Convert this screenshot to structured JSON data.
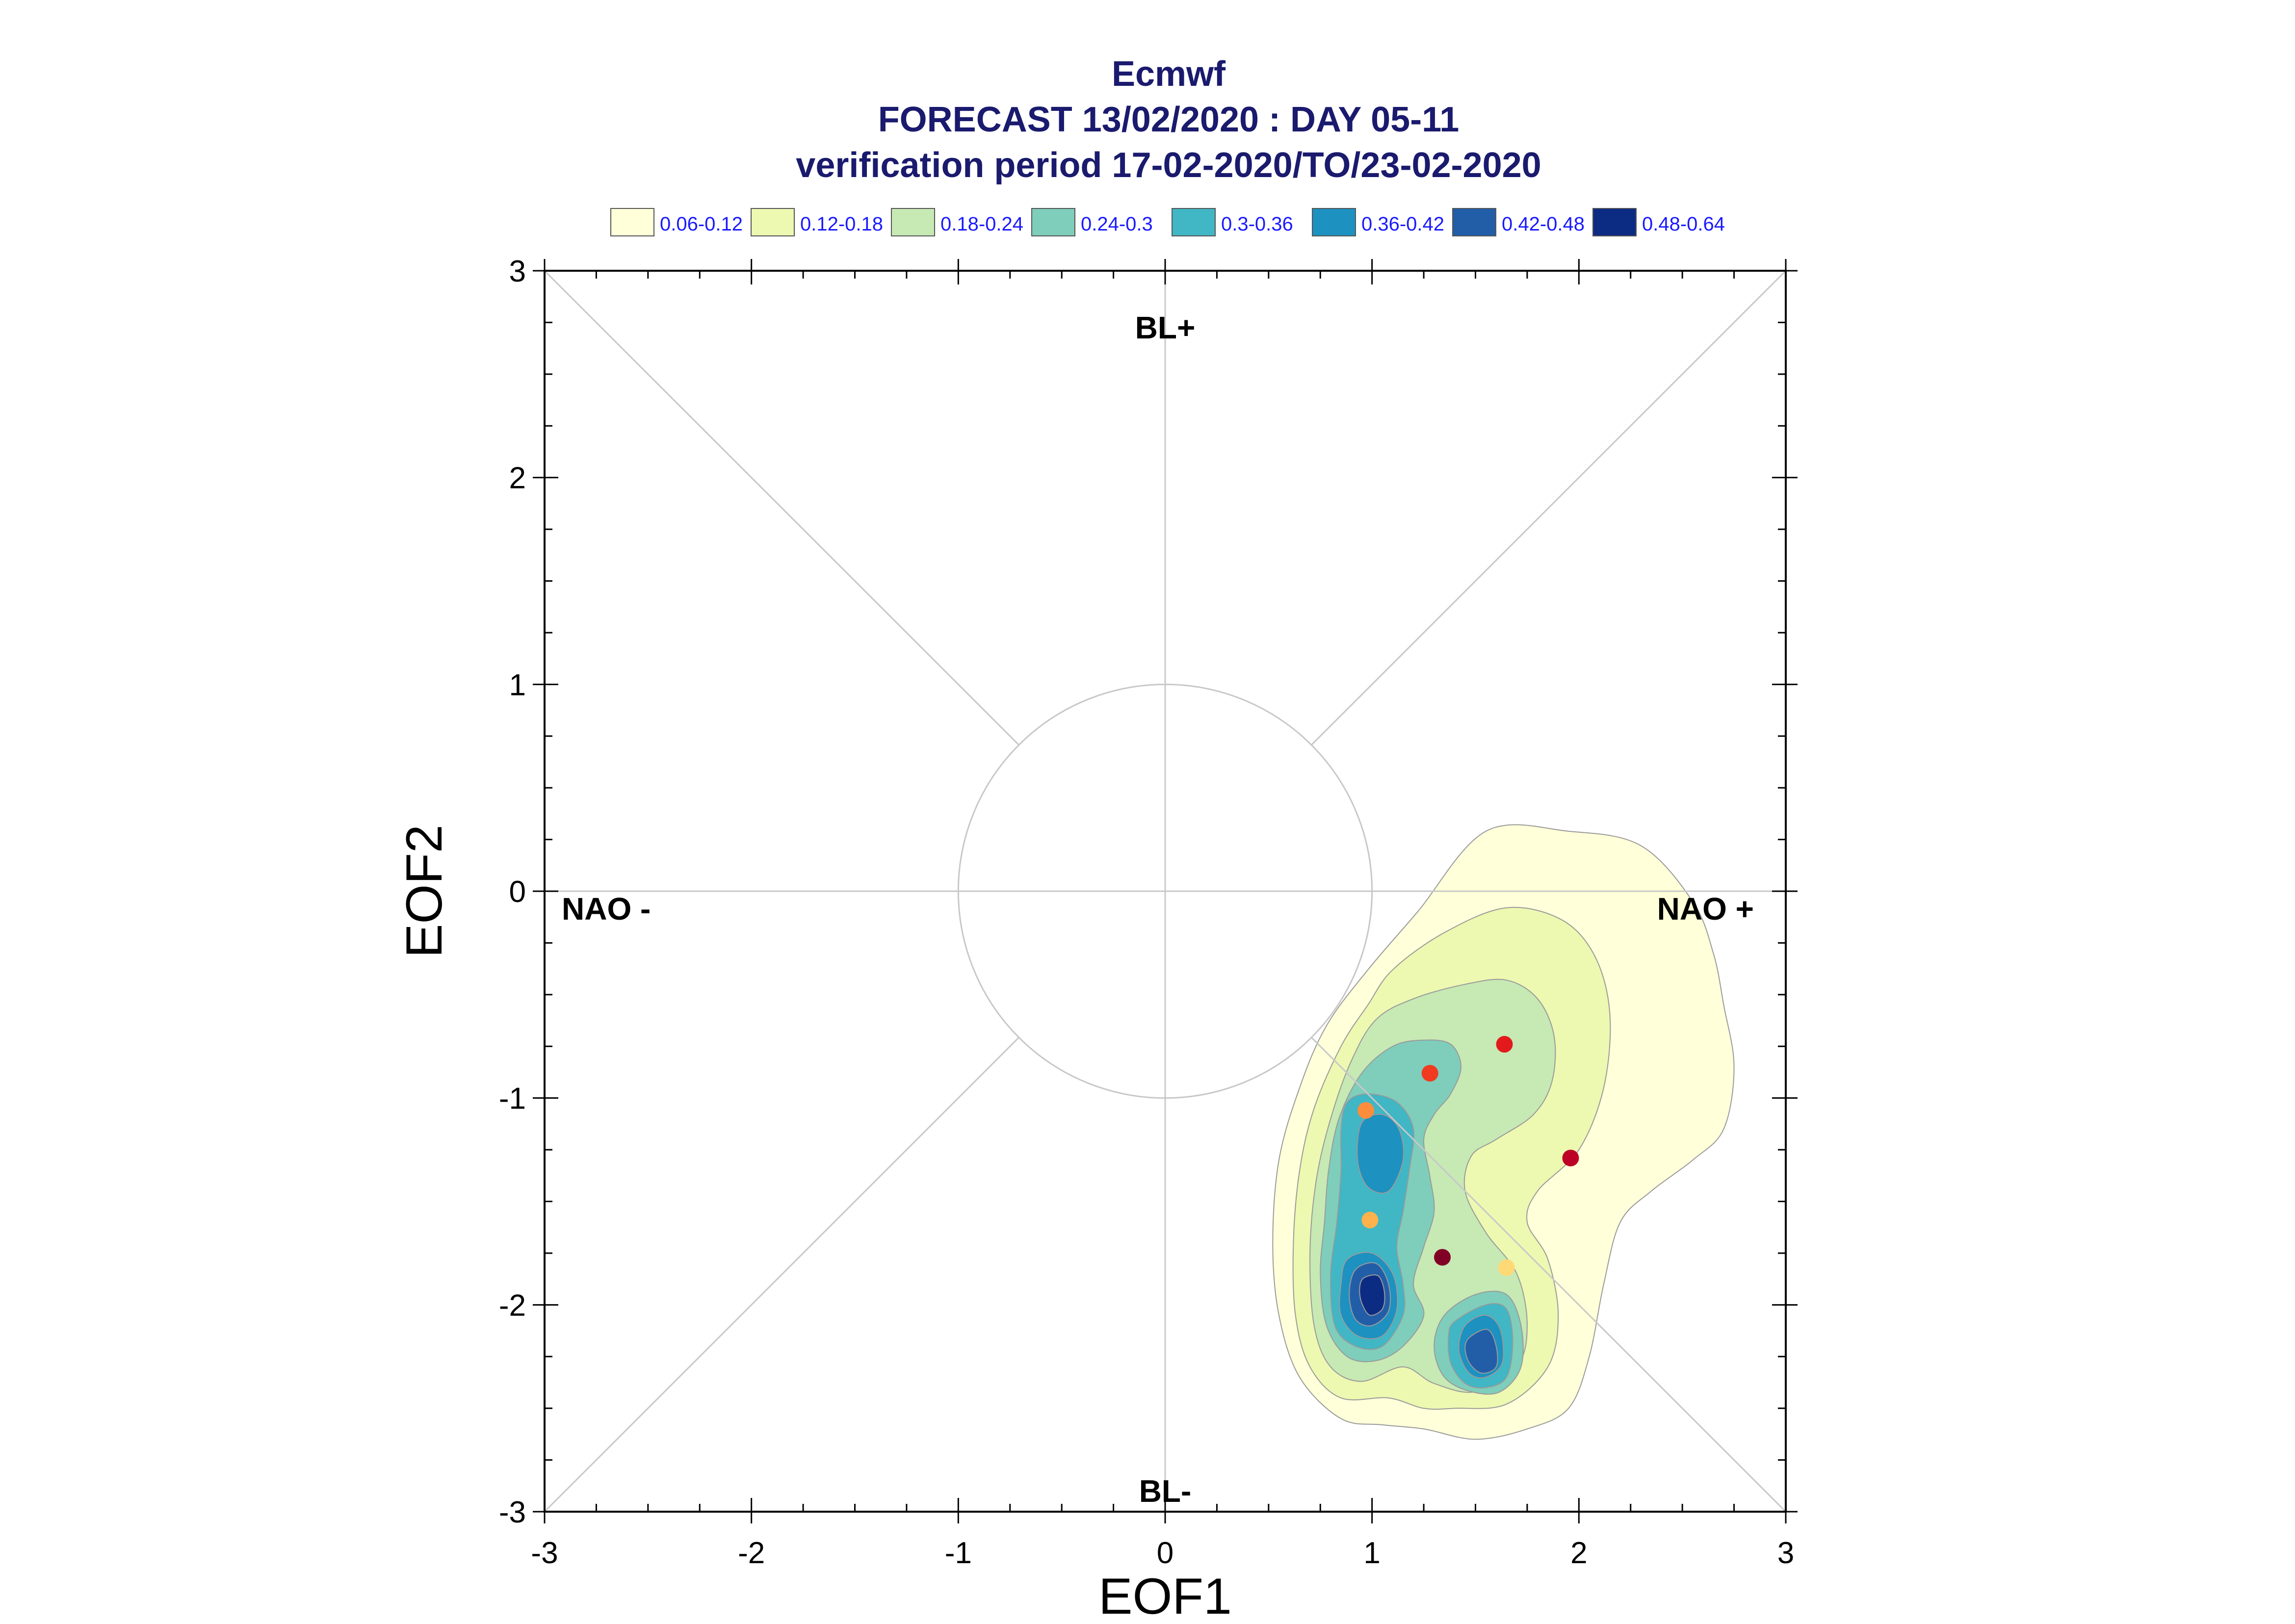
{
  "titles": {
    "line1": "Ecmwf",
    "line2": "FORECAST 13/02/2020 : DAY 05-11",
    "line3": "verification period 17-02-2020/TO/23-02-2020"
  },
  "legend": [
    {
      "label": "0.06-0.12",
      "color": "#ffffd9"
    },
    {
      "label": "0.12-0.18",
      "color": "#edf8b1"
    },
    {
      "label": "0.18-0.24",
      "color": "#c7e9b4"
    },
    {
      "label": "0.24-0.3",
      "color": "#7fcdbb"
    },
    {
      "label": "0.3-0.36",
      "color": "#41b6c4"
    },
    {
      "label": "0.36-0.42",
      "color": "#1d91c0"
    },
    {
      "label": "0.42-0.48",
      "color": "#225ea8"
    },
    {
      "label": "0.48-0.64",
      "color": "#0c2c84"
    }
  ],
  "regimes": {
    "top": "BL+",
    "bottom": "BL-",
    "left": "NAO -",
    "right": "NAO +"
  },
  "chart_data": {
    "type": "scatter",
    "xlabel": "EOF1",
    "ylabel": "EOF2",
    "xlim": [
      -3,
      3
    ],
    "ylim": [
      -3,
      3
    ],
    "xticks": [
      "-3",
      "-2",
      "-1",
      "0",
      "1",
      "2",
      "3"
    ],
    "yticks": [
      "-3",
      "-2",
      "-1",
      "0",
      "1",
      "2",
      "3"
    ],
    "unit_circle_radius": 1,
    "points": [
      {
        "x": 1.64,
        "y": -0.74,
        "color": "#e31a1c"
      },
      {
        "x": 1.28,
        "y": -0.88,
        "color": "#f03b20"
      },
      {
        "x": 0.97,
        "y": -1.06,
        "color": "#fd8d3c"
      },
      {
        "x": 1.96,
        "y": -1.29,
        "color": "#bd0026"
      },
      {
        "x": 0.99,
        "y": -1.59,
        "color": "#feb24c"
      },
      {
        "x": 1.34,
        "y": -1.77,
        "color": "#800026"
      },
      {
        "x": 1.65,
        "y": -1.82,
        "color": "#fed976"
      }
    ],
    "density_levels": [
      0.06,
      0.12,
      0.18,
      0.24,
      0.3,
      0.36,
      0.42,
      0.48,
      0.64
    ],
    "density_contours": [
      {
        "level": "0.06-0.12",
        "color": "#ffffd9",
        "polys": [
          [
            [
              1.55,
              0.29
            ],
            [
              1.95,
              0.29
            ],
            [
              2.3,
              0.22
            ],
            [
              2.55,
              -0.05
            ],
            [
              2.65,
              -0.3
            ],
            [
              2.7,
              -0.55
            ],
            [
              2.75,
              -0.85
            ],
            [
              2.7,
              -1.15
            ],
            [
              2.55,
              -1.3
            ],
            [
              2.35,
              -1.45
            ],
            [
              2.2,
              -1.6
            ],
            [
              2.12,
              -1.9
            ],
            [
              2.05,
              -2.25
            ],
            [
              1.95,
              -2.5
            ],
            [
              1.75,
              -2.6
            ],
            [
              1.5,
              -2.65
            ],
            [
              1.25,
              -2.6
            ],
            [
              1.05,
              -2.58
            ],
            [
              0.85,
              -2.55
            ],
            [
              0.65,
              -2.35
            ],
            [
              0.55,
              -2.05
            ],
            [
              0.52,
              -1.7
            ],
            [
              0.55,
              -1.3
            ],
            [
              0.65,
              -0.95
            ],
            [
              0.78,
              -0.65
            ],
            [
              0.98,
              -0.38
            ],
            [
              1.22,
              -0.1
            ]
          ]
        ]
      },
      {
        "level": "0.12-0.18",
        "color": "#edf8b1",
        "polys": [
          [
            [
              1.1,
              -0.38
            ],
            [
              1.35,
              -0.2
            ],
            [
              1.65,
              -0.08
            ],
            [
              1.92,
              -0.14
            ],
            [
              2.08,
              -0.32
            ],
            [
              2.15,
              -0.6
            ],
            [
              2.12,
              -0.95
            ],
            [
              2.0,
              -1.25
            ],
            [
              1.8,
              -1.45
            ],
            [
              1.75,
              -1.6
            ],
            [
              1.85,
              -1.78
            ],
            [
              1.9,
              -2.05
            ],
            [
              1.85,
              -2.3
            ],
            [
              1.65,
              -2.48
            ],
            [
              1.4,
              -2.5
            ],
            [
              1.25,
              -2.5
            ],
            [
              1.08,
              -2.45
            ],
            [
              0.85,
              -2.45
            ],
            [
              0.7,
              -2.3
            ],
            [
              0.63,
              -2.05
            ],
            [
              0.62,
              -1.7
            ],
            [
              0.65,
              -1.35
            ],
            [
              0.72,
              -1.05
            ],
            [
              0.85,
              -0.75
            ],
            [
              0.98,
              -0.55
            ]
          ]
        ]
      },
      {
        "level": "0.18-0.24",
        "color": "#c7e9b4",
        "polys": [
          [
            [
              1.02,
              -0.62
            ],
            [
              1.2,
              -0.52
            ],
            [
              1.45,
              -0.45
            ],
            [
              1.65,
              -0.43
            ],
            [
              1.8,
              -0.52
            ],
            [
              1.88,
              -0.7
            ],
            [
              1.87,
              -0.92
            ],
            [
              1.78,
              -1.08
            ],
            [
              1.6,
              -1.2
            ],
            [
              1.48,
              -1.28
            ],
            [
              1.45,
              -1.45
            ],
            [
              1.55,
              -1.65
            ],
            [
              1.7,
              -1.85
            ],
            [
              1.75,
              -2.1
            ],
            [
              1.7,
              -2.3
            ],
            [
              1.5,
              -2.42
            ],
            [
              1.3,
              -2.38
            ],
            [
              1.15,
              -2.3
            ],
            [
              0.95,
              -2.37
            ],
            [
              0.8,
              -2.3
            ],
            [
              0.72,
              -2.1
            ],
            [
              0.7,
              -1.75
            ],
            [
              0.73,
              -1.4
            ],
            [
              0.8,
              -1.1
            ],
            [
              0.9,
              -0.82
            ]
          ]
        ]
      },
      {
        "level": "0.24-0.3",
        "color": "#7fcdbb",
        "polys": [
          [
            [
              0.84,
              -1.1
            ],
            [
              0.95,
              -0.88
            ],
            [
              1.1,
              -0.75
            ],
            [
              1.25,
              -0.72
            ],
            [
              1.38,
              -0.74
            ],
            [
              1.43,
              -0.85
            ],
            [
              1.38,
              -0.98
            ],
            [
              1.3,
              -1.08
            ],
            [
              1.25,
              -1.2
            ],
            [
              1.28,
              -1.38
            ],
            [
              1.3,
              -1.55
            ],
            [
              1.25,
              -1.72
            ],
            [
              1.2,
              -1.9
            ],
            [
              1.25,
              -2.05
            ],
            [
              1.15,
              -2.2
            ],
            [
              1.02,
              -2.27
            ],
            [
              0.88,
              -2.25
            ],
            [
              0.78,
              -2.1
            ],
            [
              0.75,
              -1.85
            ],
            [
              0.77,
              -1.6
            ],
            [
              0.79,
              -1.35
            ]
          ],
          [
            [
              1.35,
              -2.05
            ],
            [
              1.5,
              -1.95
            ],
            [
              1.65,
              -1.95
            ],
            [
              1.72,
              -2.1
            ],
            [
              1.72,
              -2.3
            ],
            [
              1.62,
              -2.42
            ],
            [
              1.48,
              -2.42
            ],
            [
              1.35,
              -2.35
            ],
            [
              1.3,
              -2.2
            ]
          ]
        ]
      },
      {
        "level": "0.3-0.36",
        "color": "#41b6c4",
        "polys": [
          [
            [
              0.88,
              -1.02
            ],
            [
              0.98,
              -0.98
            ],
            [
              1.12,
              -1.02
            ],
            [
              1.2,
              -1.15
            ],
            [
              1.18,
              -1.35
            ],
            [
              1.15,
              -1.55
            ],
            [
              1.12,
              -1.72
            ],
            [
              1.15,
              -1.9
            ],
            [
              1.15,
              -2.05
            ],
            [
              1.05,
              -2.2
            ],
            [
              0.92,
              -2.2
            ],
            [
              0.82,
              -2.1
            ],
            [
              0.8,
              -1.85
            ],
            [
              0.83,
              -1.6
            ],
            [
              0.85,
              -1.35
            ],
            [
              0.85,
              -1.15
            ]
          ],
          [
            [
              1.4,
              -2.08
            ],
            [
              1.55,
              -2.0
            ],
            [
              1.65,
              -2.02
            ],
            [
              1.68,
              -2.18
            ],
            [
              1.65,
              -2.35
            ],
            [
              1.55,
              -2.4
            ],
            [
              1.45,
              -2.38
            ],
            [
              1.38,
              -2.28
            ],
            [
              1.37,
              -2.15
            ]
          ]
        ]
      },
      {
        "level": "0.36-0.42",
        "color": "#1d91c0",
        "polys": [
          [
            [
              0.95,
              -1.12
            ],
            [
              1.05,
              -1.08
            ],
            [
              1.13,
              -1.15
            ],
            [
              1.15,
              -1.3
            ],
            [
              1.08,
              -1.45
            ],
            [
              0.98,
              -1.43
            ],
            [
              0.93,
              -1.3
            ]
          ],
          [
            [
              0.88,
              -1.78
            ],
            [
              1.0,
              -1.75
            ],
            [
              1.1,
              -1.85
            ],
            [
              1.12,
              -2.02
            ],
            [
              1.05,
              -2.15
            ],
            [
              0.93,
              -2.15
            ],
            [
              0.85,
              -2.05
            ],
            [
              0.85,
              -1.9
            ]
          ],
          [
            [
              1.45,
              -2.1
            ],
            [
              1.55,
              -2.05
            ],
            [
              1.62,
              -2.12
            ],
            [
              1.63,
              -2.28
            ],
            [
              1.55,
              -2.35
            ],
            [
              1.47,
              -2.33
            ],
            [
              1.42,
              -2.22
            ]
          ]
        ]
      },
      {
        "level": "0.42-0.48",
        "color": "#225ea8",
        "polys": [
          [
            [
              0.92,
              -1.83
            ],
            [
              1.02,
              -1.8
            ],
            [
              1.08,
              -1.9
            ],
            [
              1.08,
              -2.03
            ],
            [
              1.0,
              -2.1
            ],
            [
              0.92,
              -2.07
            ],
            [
              0.89,
              -1.95
            ]
          ],
          [
            [
              1.48,
              -2.15
            ],
            [
              1.56,
              -2.12
            ],
            [
              1.6,
              -2.2
            ],
            [
              1.6,
              -2.3
            ],
            [
              1.53,
              -2.33
            ],
            [
              1.47,
              -2.28
            ],
            [
              1.45,
              -2.2
            ]
          ]
        ]
      },
      {
        "level": "0.48-0.64",
        "color": "#0c2c84",
        "polys": [
          [
            [
              0.96,
              -1.87
            ],
            [
              1.03,
              -1.86
            ],
            [
              1.06,
              -1.94
            ],
            [
              1.05,
              -2.02
            ],
            [
              0.99,
              -2.05
            ],
            [
              0.95,
              -1.99
            ],
            [
              0.94,
              -1.92
            ]
          ]
        ]
      }
    ]
  }
}
